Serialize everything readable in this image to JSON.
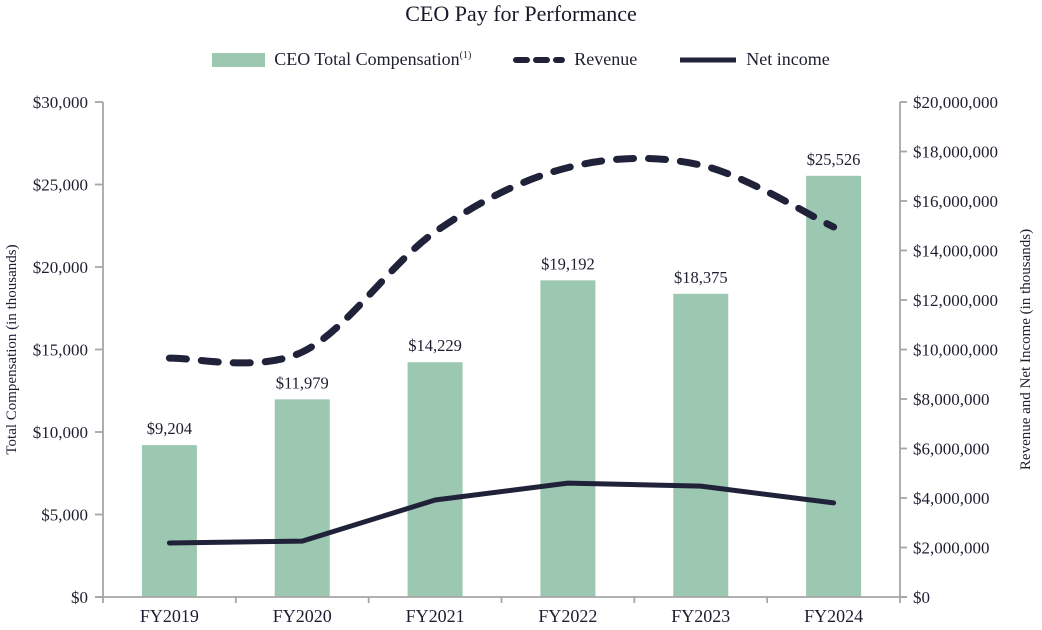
{
  "title": "CEO Pay for Performance",
  "legend": [
    {
      "label": "CEO Total Compensation",
      "superscript": "(1)",
      "type": "bar-swatch"
    },
    {
      "label": "Revenue",
      "type": "dashed-line"
    },
    {
      "label": "Net income",
      "type": "solid-line"
    }
  ],
  "colors": {
    "bar": "#9cc7b1",
    "line": "#20223a",
    "axis": "#a6a6a6",
    "text": "#1d1f31"
  },
  "chart_data": {
    "type": "bar",
    "subtype": "bar-line-combo",
    "title": "CEO Pay for Performance",
    "categories": [
      "FY2019",
      "FY2020",
      "FY2021",
      "FY2022",
      "FY2023",
      "FY2024"
    ],
    "series": [
      {
        "name": "CEO Total Compensation(1)",
        "type": "bar",
        "axis": "left",
        "values": [
          9204,
          11979,
          14229,
          19192,
          18375,
          25526
        ],
        "data_labels": [
          "$9,204",
          "$11,979",
          "$14,229",
          "$19,192",
          "$18,375",
          "$25,526"
        ],
        "color": "#9cc7b1"
      },
      {
        "name": "Revenue",
        "type": "line",
        "line_style": "dashed",
        "smooth": true,
        "axis": "right",
        "values": [
          9650000,
          9900000,
          14750000,
          17350000,
          17450000,
          14950000
        ],
        "color": "#20223a"
      },
      {
        "name": "Net income",
        "type": "line",
        "line_style": "solid",
        "smooth": false,
        "axis": "right",
        "values": [
          2180000,
          2260000,
          3920000,
          4600000,
          4480000,
          3800000
        ],
        "color": "#20223a"
      }
    ],
    "left_axis": {
      "title": "Total Compensation (in thousands)",
      "min": 0,
      "max": 30000,
      "step": 5000,
      "tick_labels": [
        "$0",
        "$5,000",
        "$10,000",
        "$15,000",
        "$20,000",
        "$25,000",
        "$30,000"
      ]
    },
    "right_axis": {
      "title": "Revenue and Net Income (in thousands)",
      "min": 0,
      "max": 20000000,
      "step": 2000000,
      "tick_labels": [
        "$0",
        "$2,000,000",
        "$4,000,000",
        "$6,000,000",
        "$8,000,000",
        "$10,000,000",
        "$12,000,000",
        "$14,000,000",
        "$16,000,000",
        "$18,000,000",
        "$20,000,000"
      ]
    },
    "grid": false,
    "legend_position": "top"
  }
}
